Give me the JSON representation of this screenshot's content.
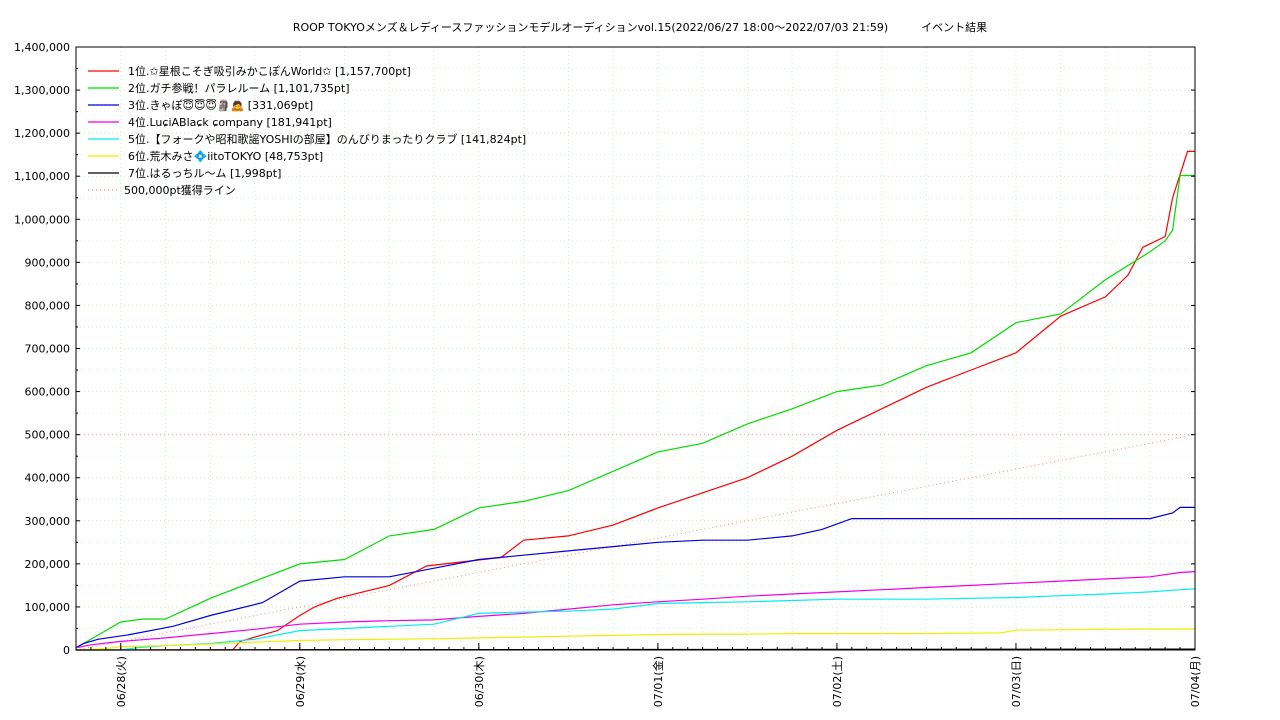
{
  "chart_data": {
    "type": "line",
    "title": "ROOP TOKYOメンズ＆レディースファッションモデルオーディションvol.15(2022/06/27 18:00～2022/07/03 21:59)　　　イベント結果",
    "xlabel": "",
    "ylabel": "",
    "ylim": [
      0,
      1400000
    ],
    "y_ticks": [
      0,
      100000,
      200000,
      300000,
      400000,
      500000,
      600000,
      700000,
      800000,
      900000,
      1000000,
      1100000,
      1200000,
      1300000,
      1400000
    ],
    "y_tick_labels": [
      "0",
      "100,000",
      "200,000",
      "300,000",
      "400,000",
      "500,000",
      "600,000",
      "700,000",
      "800,000",
      "900,000",
      "1,000,000",
      "1,100,000",
      "1,200,000",
      "1,300,000",
      "1,400,000"
    ],
    "x_unit": "hours since 2022-06-27 18:00",
    "xlim": [
      0,
      150
    ],
    "x_ticks": [
      6,
      30,
      54,
      78,
      102,
      126,
      150
    ],
    "x_tick_labels": [
      "06/28(火)",
      "06/29(水)",
      "06/30(木)",
      "07/01(金)",
      "07/02(土)",
      "07/03(日)",
      "07/04(月)"
    ],
    "grid": true,
    "legend_position": "top-left",
    "series": [
      {
        "name": "1位.✩星根こそぎ吸引みかこぽんWorld✩ [1,157,700pt]",
        "color": "#ff0000",
        "x": [
          0,
          21,
          22,
          27,
          30,
          32,
          35,
          42,
          47,
          57,
          60,
          66,
          72,
          78,
          90,
          96,
          102,
          108,
          114,
          120,
          126,
          132,
          138,
          141,
          143,
          146,
          147,
          149,
          150
        ],
        "y": [
          0,
          0,
          20000,
          45000,
          80000,
          100000,
          120000,
          150000,
          195000,
          215000,
          255000,
          265000,
          290000,
          330000,
          400000,
          450000,
          510000,
          560000,
          610000,
          650000,
          690000,
          775000,
          820000,
          870000,
          935000,
          960000,
          1050000,
          1157700,
          1157700
        ]
      },
      {
        "name": "2位.ガチ参戦！パラレルーム [1,101,735pt]",
        "color": "#00dd00",
        "x": [
          0,
          3,
          6,
          9,
          12,
          18,
          24,
          30,
          36,
          42,
          48,
          54,
          60,
          66,
          72,
          78,
          84,
          90,
          96,
          102,
          108,
          114,
          120,
          126,
          132,
          138,
          144,
          146,
          147,
          148,
          150
        ],
        "y": [
          5000,
          35000,
          65000,
          72000,
          72000,
          120000,
          160000,
          200000,
          210000,
          265000,
          280000,
          330000,
          345000,
          370000,
          415000,
          460000,
          480000,
          525000,
          560000,
          600000,
          615000,
          660000,
          690000,
          760000,
          780000,
          860000,
          925000,
          950000,
          975000,
          1101735,
          1101735
        ]
      },
      {
        "name": "3位.きゃぽ😇😇😇🗿🙇 [331,069pt]",
        "color": "#0000dd",
        "x": [
          0,
          1,
          3,
          7,
          13,
          18,
          25,
          30,
          36,
          42,
          48,
          54,
          60,
          66,
          72,
          78,
          84,
          90,
          96,
          100,
          104,
          108,
          114,
          120,
          126,
          132,
          138,
          144,
          147,
          148,
          150
        ],
        "y": [
          5000,
          15000,
          25000,
          35000,
          55000,
          80000,
          110000,
          160000,
          170000,
          170000,
          190000,
          210000,
          220000,
          230000,
          240000,
          250000,
          255000,
          255000,
          265000,
          280000,
          305000,
          305000,
          305000,
          305000,
          305000,
          305000,
          305000,
          305000,
          318000,
          331069,
          331069
        ]
      },
      {
        "name": "4位.LuɕiABlaɕk ɕompany [181,941pt]",
        "color": "#ee00ee",
        "x": [
          0,
          2,
          6,
          12,
          18,
          24,
          30,
          36,
          42,
          48,
          54,
          60,
          66,
          72,
          78,
          84,
          90,
          96,
          102,
          108,
          114,
          120,
          126,
          132,
          138,
          144,
          148,
          150
        ],
        "y": [
          5000,
          12000,
          20000,
          28000,
          38000,
          48000,
          60000,
          65000,
          68000,
          70000,
          78000,
          85000,
          95000,
          105000,
          112000,
          118000,
          125000,
          130000,
          135000,
          140000,
          145000,
          150000,
          155000,
          160000,
          165000,
          170000,
          180000,
          181941
        ]
      },
      {
        "name": "5位.【フォークや昭和歌謡YOSHIの部屋】のんびりまったりクラブ [141,824pt]",
        "color": "#00eeee",
        "x": [
          0,
          6,
          8,
          12,
          18,
          24,
          30,
          36,
          42,
          48,
          54,
          60,
          66,
          72,
          78,
          84,
          90,
          96,
          102,
          108,
          114,
          120,
          126,
          132,
          138,
          144,
          148,
          150
        ],
        "y": [
          0,
          0,
          5000,
          10000,
          15000,
          25000,
          45000,
          50000,
          55000,
          60000,
          85000,
          88000,
          90000,
          95000,
          108000,
          110000,
          112000,
          115000,
          118000,
          118000,
          118000,
          120000,
          122000,
          126000,
          130000,
          135000,
          140000,
          141824
        ]
      },
      {
        "name": "6位.荒木みさ💠iitoTOKYO [48,753pt]",
        "color": "#eeee00",
        "x": [
          0,
          4,
          6,
          12,
          18,
          24,
          30,
          36,
          42,
          48,
          54,
          60,
          66,
          72,
          78,
          84,
          90,
          96,
          102,
          108,
          114,
          120,
          124,
          126,
          132,
          138,
          144,
          150
        ],
        "y": [
          0,
          3000,
          8000,
          10000,
          14000,
          18000,
          22000,
          24000,
          25000,
          26000,
          28000,
          30000,
          32000,
          34000,
          36000,
          37000,
          37000,
          38000,
          38000,
          38000,
          38000,
          39000,
          40000,
          46000,
          47000,
          48000,
          48500,
          48753
        ]
      },
      {
        "name": "7位.はるっちル〜ム [1,998pt]",
        "color": "#000000",
        "x": [
          0,
          12,
          24,
          48,
          72,
          96,
          120,
          150
        ],
        "y": [
          0,
          300,
          600,
          900,
          1200,
          1500,
          1800,
          1998
        ]
      },
      {
        "name": "500,000pt獲得ライン",
        "color": "#ff8888",
        "dashed": true,
        "x": [
          0,
          150
        ],
        "y": [
          0,
          500000
        ]
      }
    ]
  }
}
